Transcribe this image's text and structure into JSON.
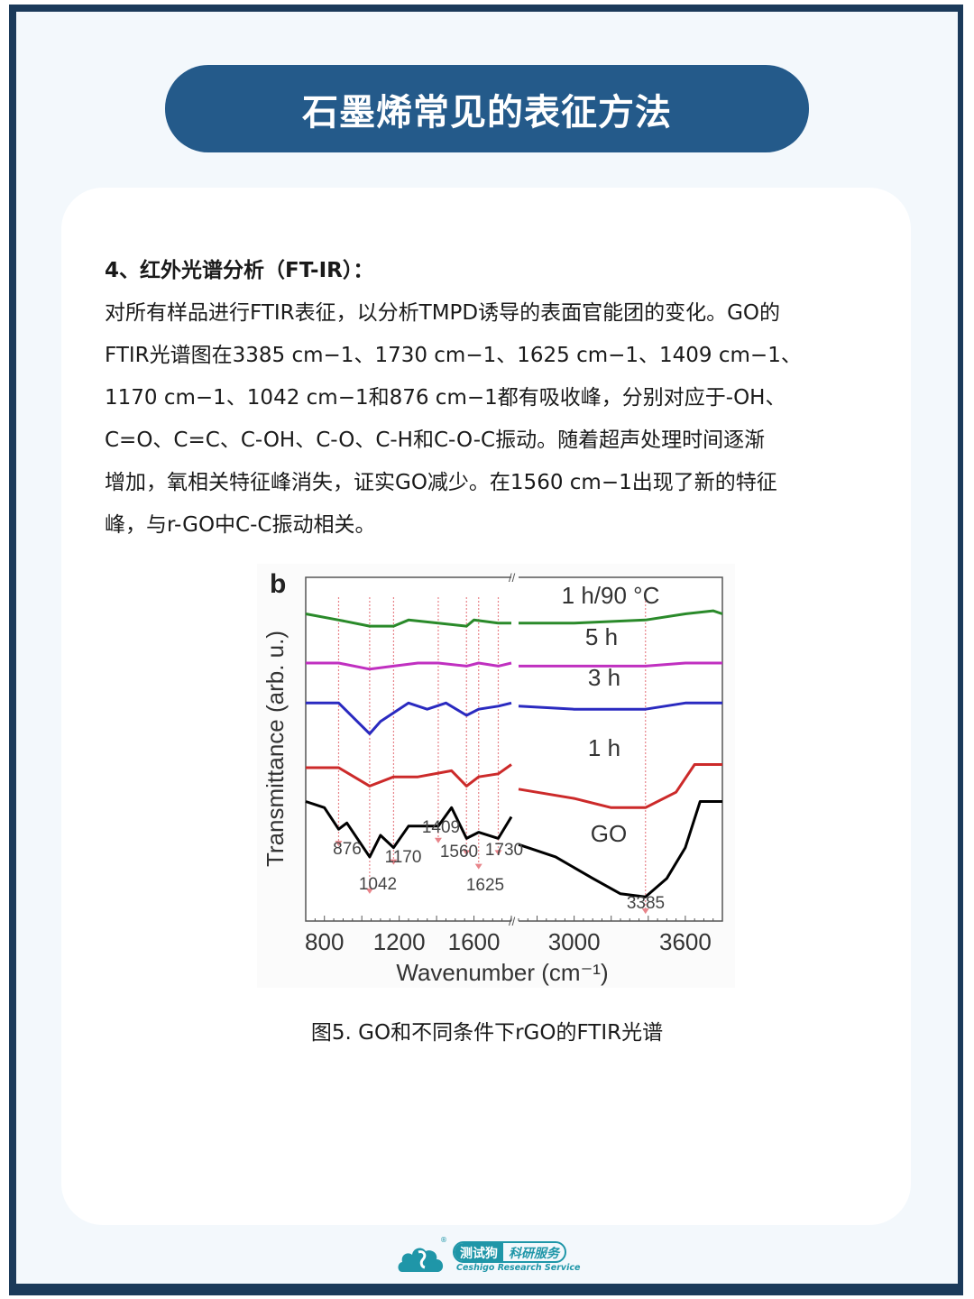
{
  "header": {
    "title": "石墨烯常见的表征方法"
  },
  "section": {
    "heading": "4、红外光谱分析（FT-IR）：",
    "paragraph_lines": [
      "对所有样品进行FTIR表征，以分析TMPD诱导的表面官能团的变化。GO的",
      "FTIR光谱图在3385 cm−1、1730 cm−1、1625 cm−1、1409 cm−1、",
      "1170 cm−1、1042 cm−1和876 cm−1都有吸收峰，分别对应于-OH、",
      "C=O、C=C、C-OH、C-O、C-H和C-O-C振动。随着超声处理时间逐渐",
      "增加，氧相关特征峰消失，证实GO减少。在1560 cm−1出现了新的特征",
      "峰，与r-GO中C-C振动相关。"
    ]
  },
  "figure": {
    "caption": "图5. GO和不同条件下rGO的FTIR光谱"
  },
  "footer": {
    "logo_cn_primary": "测试狗",
    "logo_cn_secondary": "科研服务",
    "logo_en": "Ceshigo Research Service",
    "registered": "®"
  },
  "colors": {
    "frame": "#1b3a5a",
    "title_pill": "#245a8a",
    "series_go": "#000000",
    "series_1h": "#cc2a2a",
    "series_3h": "#2a2ac0",
    "series_5h": "#c030c0",
    "series_1h90": "#2a8a2a",
    "guide_line": "#e8848a",
    "logo": "#1f96a8"
  },
  "chart_data": {
    "type": "line",
    "panel_label": "b",
    "title": "",
    "xlabel": "Wavenumber (cm-1)",
    "ylabel": "Transmittance (arb. u.)",
    "x_axis_broken": true,
    "x_segments": [
      [
        700,
        1800
      ],
      [
        2700,
        3800
      ]
    ],
    "xticks": [
      800,
      1200,
      1600,
      3000,
      3600
    ],
    "grid": false,
    "legend": "inline labels",
    "series": [
      {
        "name": "1 h/90 °C",
        "color": "#2a8a2a",
        "left": [
          [
            700,
            0.94
          ],
          [
            876,
            0.92
          ],
          [
            1042,
            0.9
          ],
          [
            1170,
            0.9
          ],
          [
            1250,
            0.92
          ],
          [
            1409,
            0.91
          ],
          [
            1560,
            0.9
          ],
          [
            1600,
            0.92
          ],
          [
            1730,
            0.91
          ],
          [
            1800,
            0.91
          ]
        ],
        "right": [
          [
            2700,
            0.91
          ],
          [
            3000,
            0.91
          ],
          [
            3385,
            0.92
          ],
          [
            3600,
            0.94
          ],
          [
            3750,
            0.95
          ],
          [
            3800,
            0.94
          ]
        ]
      },
      {
        "name": "5 h",
        "color": "#c030c0",
        "left": [
          [
            700,
            0.78
          ],
          [
            876,
            0.78
          ],
          [
            1042,
            0.76
          ],
          [
            1170,
            0.77
          ],
          [
            1300,
            0.78
          ],
          [
            1409,
            0.78
          ],
          [
            1560,
            0.77
          ],
          [
            1625,
            0.78
          ],
          [
            1730,
            0.77
          ],
          [
            1800,
            0.78
          ]
        ],
        "right": [
          [
            2700,
            0.77
          ],
          [
            3000,
            0.77
          ],
          [
            3385,
            0.77
          ],
          [
            3600,
            0.78
          ],
          [
            3800,
            0.78
          ]
        ]
      },
      {
        "name": "3 h",
        "color": "#2a2ac0",
        "left": [
          [
            700,
            0.65
          ],
          [
            876,
            0.65
          ],
          [
            1042,
            0.55
          ],
          [
            1100,
            0.59
          ],
          [
            1250,
            0.65
          ],
          [
            1350,
            0.63
          ],
          [
            1450,
            0.65
          ],
          [
            1560,
            0.61
          ],
          [
            1625,
            0.63
          ],
          [
            1730,
            0.64
          ],
          [
            1800,
            0.65
          ]
        ],
        "right": [
          [
            2700,
            0.64
          ],
          [
            3000,
            0.63
          ],
          [
            3385,
            0.63
          ],
          [
            3600,
            0.65
          ],
          [
            3800,
            0.65
          ]
        ]
      },
      {
        "name": "1 h",
        "color": "#cc2a2a",
        "left": [
          [
            700,
            0.44
          ],
          [
            876,
            0.44
          ],
          [
            1042,
            0.38
          ],
          [
            1170,
            0.41
          ],
          [
            1300,
            0.41
          ],
          [
            1480,
            0.43
          ],
          [
            1560,
            0.38
          ],
          [
            1625,
            0.41
          ],
          [
            1730,
            0.42
          ],
          [
            1800,
            0.45
          ]
        ],
        "right": [
          [
            2700,
            0.37
          ],
          [
            3000,
            0.34
          ],
          [
            3200,
            0.31
          ],
          [
            3385,
            0.31
          ],
          [
            3550,
            0.36
          ],
          [
            3650,
            0.45
          ],
          [
            3800,
            0.45
          ]
        ]
      },
      {
        "name": "GO",
        "color": "#000000",
        "left": [
          [
            700,
            0.33
          ],
          [
            800,
            0.31
          ],
          [
            876,
            0.24
          ],
          [
            920,
            0.26
          ],
          [
            1042,
            0.15
          ],
          [
            1100,
            0.22
          ],
          [
            1170,
            0.18
          ],
          [
            1250,
            0.25
          ],
          [
            1409,
            0.25
          ],
          [
            1480,
            0.31
          ],
          [
            1560,
            0.21
          ],
          [
            1625,
            0.23
          ],
          [
            1730,
            0.21
          ],
          [
            1800,
            0.28
          ]
        ],
        "right": [
          [
            2700,
            0.19
          ],
          [
            2900,
            0.15
          ],
          [
            3100,
            0.08
          ],
          [
            3250,
            0.03
          ],
          [
            3385,
            0.02
          ],
          [
            3500,
            0.08
          ],
          [
            3600,
            0.18
          ],
          [
            3680,
            0.33
          ],
          [
            3800,
            0.33
          ]
        ]
      }
    ],
    "annotations": [
      {
        "x": 876,
        "label": "876"
      },
      {
        "x": 1042,
        "label": "1042"
      },
      {
        "x": 1170,
        "label": "1170"
      },
      {
        "x": 1409,
        "label": "1409"
      },
      {
        "x": 1560,
        "label": "1560"
      },
      {
        "x": 1625,
        "label": "1625"
      },
      {
        "x": 1730,
        "label": "1730"
      },
      {
        "x": 3385,
        "label": "3385"
      }
    ]
  }
}
